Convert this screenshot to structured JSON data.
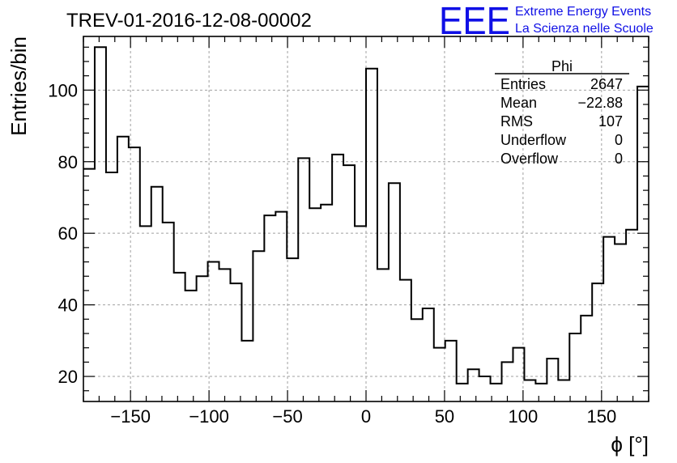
{
  "chart_data": {
    "type": "bar",
    "title": "TREV-01-2016-12-08-00002",
    "xlabel": "ϕ [°]",
    "ylabel": "Entries/bin",
    "xlim": [
      -180,
      180
    ],
    "ylim": [
      13,
      115
    ],
    "x_ticks": [
      -150,
      -100,
      -50,
      0,
      50,
      100,
      150
    ],
    "y_ticks": [
      20,
      40,
      60,
      80,
      100
    ],
    "x_tick_labels": [
      "−150",
      "−100",
      "−50",
      "0",
      "50",
      "100",
      "150"
    ],
    "y_tick_labels": [
      "20",
      "40",
      "60",
      "80",
      "100"
    ],
    "grid": true,
    "bin_edges_start": -180,
    "bin_width": 7.2,
    "values": [
      78,
      112,
      77,
      87,
      84,
      62,
      73,
      63,
      49,
      44,
      48,
      52,
      50,
      46,
      30,
      55,
      65,
      66,
      53,
      81,
      67,
      68,
      82,
      79,
      62,
      106,
      50,
      74,
      47,
      36,
      39,
      28,
      30,
      18,
      22,
      20,
      18,
      24,
      28,
      19,
      18,
      25,
      19,
      32,
      37,
      46,
      59,
      57,
      61,
      101
    ],
    "stats": {
      "name": "Phi",
      "rows": [
        {
          "label": "Entries",
          "value": "2647"
        },
        {
          "label": "Mean",
          "value": "−22.88"
        },
        {
          "label": "RMS",
          "value": "107"
        },
        {
          "label": "Underflow",
          "value": "0"
        },
        {
          "label": "Overflow",
          "value": "0"
        }
      ]
    }
  },
  "logo": {
    "mark": "EEE",
    "line1": "Extreme Energy Events",
    "line2": "La Scienza nelle Scuole",
    "color": "#1010e6"
  }
}
